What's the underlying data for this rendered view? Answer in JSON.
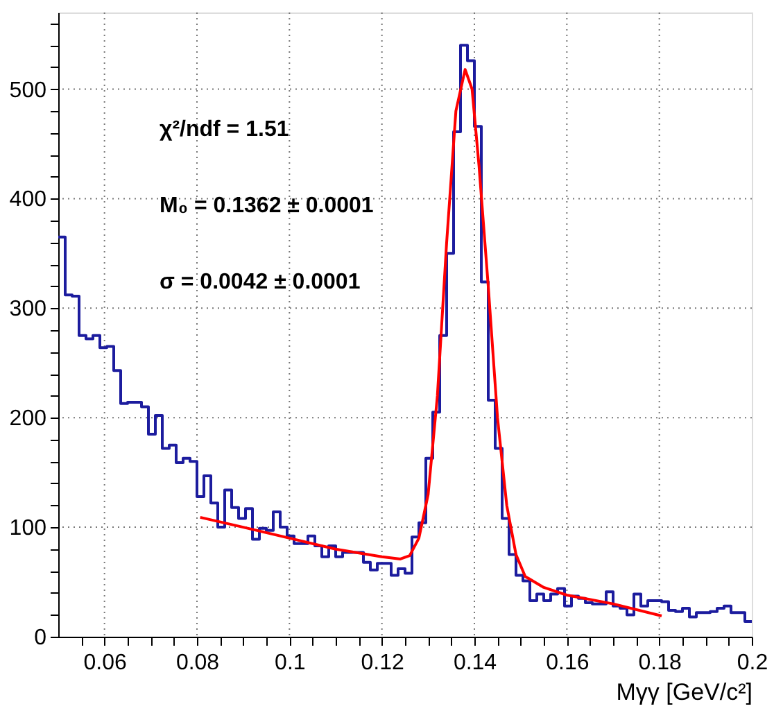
{
  "chart_data": {
    "type": "histogram",
    "xlabel": "Mγγ [GeV/c²]",
    "annotations": [
      "χ²/ndf = 1.51",
      "M₀ = 0.1362 ± 0.0001",
      "σ = 0.0042 ± 0.0001"
    ],
    "bins": [
      0.05,
      0.0515,
      0.053,
      0.0545,
      0.056,
      0.0575,
      0.059,
      0.0605,
      0.062,
      0.0635,
      0.065,
      0.0665,
      0.068,
      0.0695,
      0.071,
      0.0725,
      0.074,
      0.0755,
      0.077,
      0.0785,
      0.08,
      0.0815,
      0.083,
      0.0845,
      0.086,
      0.0875,
      0.089,
      0.0905,
      0.092,
      0.0935,
      0.095,
      0.0965,
      0.098,
      0.0995,
      0.101,
      0.1025,
      0.104,
      0.1055,
      0.107,
      0.1085,
      0.11,
      0.1115,
      0.113,
      0.1145,
      0.116,
      0.1175,
      0.119,
      0.1205,
      0.122,
      0.1235,
      0.125,
      0.1265,
      0.128,
      0.1295,
      0.131,
      0.1325,
      0.134,
      0.1355,
      0.137,
      0.1385,
      0.14,
      0.1415,
      0.143,
      0.1445,
      0.146,
      0.1475,
      0.149,
      0.1505,
      0.152,
      0.1535,
      0.155,
      0.1565,
      0.158,
      0.1595,
      0.161,
      0.1625,
      0.164,
      0.1655,
      0.167,
      0.1685,
      0.17,
      0.1715,
      0.173,
      0.1745,
      0.176,
      0.1775,
      0.179,
      0.1805,
      0.182,
      0.1835,
      0.185,
      0.1865,
      0.188,
      0.1895,
      0.191,
      0.1925,
      0.194,
      0.1955,
      0.197,
      0.1985,
      0.2
    ],
    "series": [
      {
        "type": "histogram",
        "color": "#1c1c9e",
        "values": [
          365,
          312,
          311,
          275,
          272,
          275,
          264,
          265,
          243,
          213,
          214,
          214,
          210,
          185,
          202,
          172,
          175,
          159,
          163,
          160,
          128,
          147,
          122,
          100,
          134,
          118,
          108,
          117,
          89,
          99,
          97,
          114,
          100,
          92,
          85,
          85,
          92,
          83,
          73,
          83,
          73,
          77,
          77,
          77,
          68,
          61,
          67,
          67,
          56,
          62,
          58,
          91,
          104,
          163,
          205,
          275,
          350,
          461,
          540,
          526,
          466,
          324,
          216,
          172,
          108,
          75,
          56,
          51,
          33,
          39,
          33,
          39,
          44,
          28,
          37,
          35,
          31,
          30,
          30,
          41,
          28,
          26,
          20,
          39,
          28,
          33,
          33,
          32,
          24,
          23,
          26,
          18,
          22,
          22,
          23,
          26,
          28,
          22,
          22,
          14
        ]
      },
      {
        "type": "line",
        "color": "#ff0000",
        "x": [
          0.0807,
          0.09,
          0.1,
          0.11,
          0.12,
          0.124,
          0.126,
          0.128,
          0.13,
          0.132,
          0.134,
          0.136,
          0.138,
          0.1395,
          0.141,
          0.143,
          0.145,
          0.147,
          0.149,
          0.151,
          0.155,
          0.16,
          0.17,
          0.1805
        ],
        "values": [
          109,
          100,
          90,
          80,
          73,
          71,
          74,
          90,
          130,
          220,
          360,
          480,
          518,
          500,
          430,
          320,
          200,
          120,
          75,
          55,
          45,
          38,
          30,
          19
        ]
      }
    ],
    "xlim": [
      0.05,
      0.2
    ],
    "xticks": [
      {
        "value": 0.055,
        "label": null
      },
      0.06,
      {
        "value": 0.065,
        "label": null
      },
      {
        "value": 0.07,
        "label": null
      },
      {
        "value": 0.075,
        "label": null
      },
      0.08,
      {
        "value": 0.085,
        "label": null
      },
      {
        "value": 0.09,
        "label": null
      },
      {
        "value": 0.095,
        "label": null
      },
      0.1,
      {
        "value": 0.105,
        "label": null
      },
      {
        "value": 0.11,
        "label": null
      },
      {
        "value": 0.115,
        "label": null
      },
      0.12,
      {
        "value": 0.125,
        "label": null
      },
      {
        "value": 0.13,
        "label": null
      },
      {
        "value": 0.135,
        "label": null
      },
      0.14,
      {
        "value": 0.145,
        "label": null
      },
      {
        "value": 0.15,
        "label": null
      },
      {
        "value": 0.155,
        "label": null
      },
      0.16,
      {
        "value": 0.165,
        "label": null
      },
      {
        "value": 0.17,
        "label": null
      },
      {
        "value": 0.175,
        "label": null
      },
      0.18,
      {
        "value": 0.185,
        "label": null
      },
      {
        "value": 0.19,
        "label": null
      },
      {
        "value": 0.195,
        "label": null
      },
      0.2
    ],
    "ylim": [
      0,
      570
    ],
    "yticks": [
      0,
      {
        "value": 20,
        "label": null
      },
      {
        "value": 40,
        "label": null
      },
      {
        "value": 60,
        "label": null
      },
      {
        "value": 80,
        "label": null
      },
      100,
      {
        "value": 120,
        "label": null
      },
      {
        "value": 140,
        "label": null
      },
      {
        "value": 160,
        "label": null
      },
      {
        "value": 180,
        "label": null
      },
      200,
      {
        "value": 220,
        "label": null
      },
      {
        "value": 240,
        "label": null
      },
      {
        "value": 260,
        "label": null
      },
      {
        "value": 280,
        "label": null
      },
      300,
      {
        "value": 320,
        "label": null
      },
      {
        "value": 340,
        "label": null
      },
      {
        "value": 360,
        "label": null
      },
      {
        "value": 380,
        "label": null
      },
      400,
      {
        "value": 420,
        "label": null
      },
      {
        "value": 440,
        "label": null
      },
      {
        "value": 460,
        "label": null
      },
      {
        "value": 480,
        "label": null
      },
      500,
      {
        "value": 520,
        "label": null
      },
      {
        "value": 540,
        "label": null
      },
      {
        "value": 560,
        "label": null
      }
    ],
    "grid": true
  }
}
